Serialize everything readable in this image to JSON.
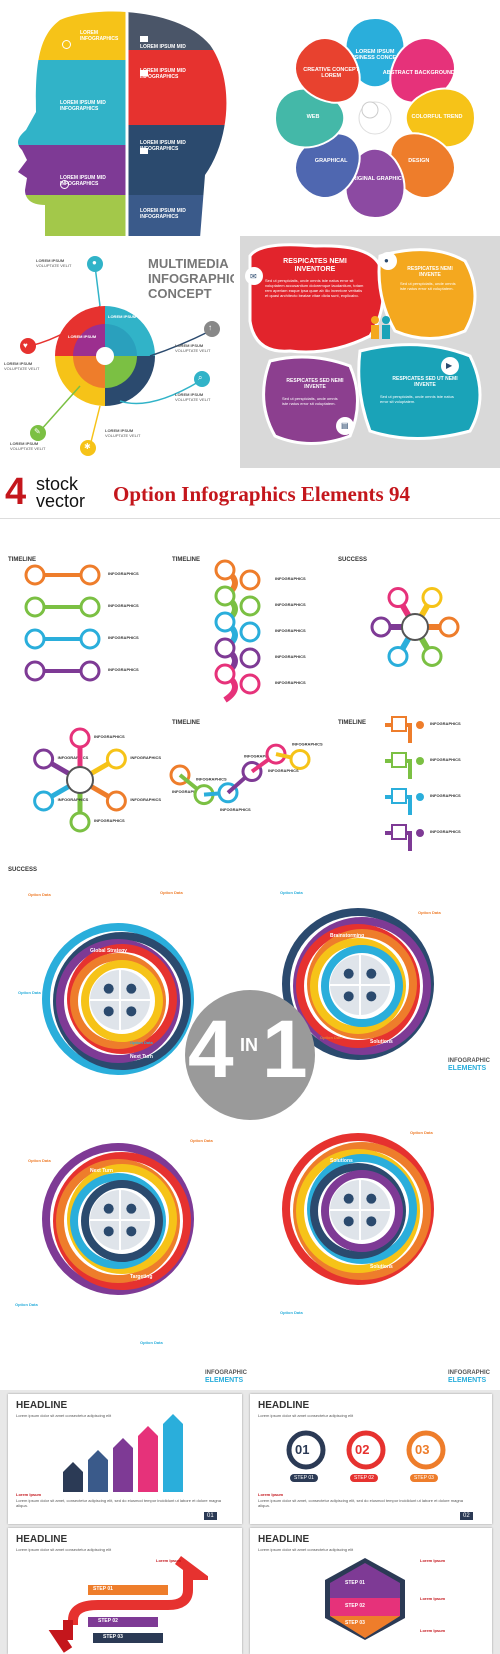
{
  "banner": {
    "logo_number": "4",
    "logo_word1": "stock",
    "logo_word2": "vector",
    "title": "Option Infographics Elements 94"
  },
  "head_panel": {
    "segments": [
      {
        "label": "LOREM INFOGRAPHICS",
        "color": "#f6c318"
      },
      {
        "label": "LOREM IPSUM MID",
        "color": "#4a5568"
      },
      {
        "label": "LOREM IPSUM MID INFOGRAPHICS",
        "color": "#e6322f"
      },
      {
        "label": "LOREM IPSUM MID INFOGRAPHICS",
        "color": "#31b3c8"
      },
      {
        "label": "LOREM IPSUM MID INFOGRAPHICS",
        "color": "#2b4a6e"
      },
      {
        "label": "LOREM IPSUM MID INFOGRAPHICS",
        "color": "#a3c84a"
      },
      {
        "label": "LOREM IPSUM MID INFOGRAPHICS",
        "color": "#7e3a95"
      },
      {
        "label": "LOREM IPSUM MID INFOGRAPHICS",
        "color": "#3a5a8a"
      }
    ]
  },
  "flower_panel": {
    "petals": [
      {
        "label": "LOREM IPSUM BUSINESS CONCEPT",
        "color": "#2aaedb"
      },
      {
        "label": "ABSTRACT BACKGROUND",
        "color": "#e6327a"
      },
      {
        "label": "COLORFUL TREND",
        "color": "#f6c318"
      },
      {
        "label": "DESIGN",
        "color": "#ee7d2b"
      },
      {
        "label": "ORIGINAL GRAPHIC",
        "color": "#8c4aa2"
      },
      {
        "label": "GRAPHICAL",
        "color": "#4f67b0"
      },
      {
        "label": "WEB",
        "color": "#44b8a8"
      },
      {
        "label": "CREATIVE CONCEPT LOREM",
        "color": "#e8422f"
      }
    ]
  },
  "multimedia_panel": {
    "title_line1": "MULTIMEDIA",
    "title_line2": "INFOGRAPHIC",
    "title_line3": "CONCEPT",
    "labels": [
      "LOREM IPSUM",
      "LOREM IPSUM",
      "LOREM IPSUM",
      "LOREM IPSUM",
      "LOREM IPSUM",
      "LOREM IPSUM",
      "LOREM IPSUM",
      "LOREM IPSUM"
    ],
    "sublabel": "VOLUPTATE VELIT"
  },
  "speech_panel": {
    "bubbles": [
      {
        "label": "RESPICATES NEMI INVENTORE",
        "color": "#e2242c"
      },
      {
        "label": "RESPICATES NEMI INVENTE",
        "color": "#f4a81f"
      },
      {
        "label": "RESPICATES SED NEMI INVENTE",
        "color": "#8c3f8f"
      },
      {
        "label": "RESPICATES SED UT NEMI INVENTE",
        "color": "#1aa3b8"
      }
    ]
  },
  "timelines": {
    "title_a": "TIMELINE",
    "title_b": "SUCCESS",
    "item_label": "INFOGRAPHICS"
  },
  "rings_panel": {
    "center_big": "4",
    "center_small": "IN",
    "center_one": "1",
    "option_label": "Option Data",
    "brand_line1": "INFOGRAPHIC",
    "brand_line2": "ELEMENTS",
    "ring_words": [
      "Global Strategy",
      "Brainstorming",
      "Next Turn",
      "Solutions",
      "Targeting",
      "Solutions"
    ]
  },
  "headline_cards": [
    {
      "headline": "HEADLINE",
      "sub": "Lorem ipsum dolor sit amet consectetur adipiscing elit",
      "page": "01",
      "lorem": "Lorem Ipsum"
    },
    {
      "headline": "HEADLINE",
      "sub": "Lorem ipsum dolor sit amet consectetur adipiscing elit",
      "page": "02",
      "lorem": "Lorem Ipsum",
      "steps": [
        "01",
        "02",
        "03"
      ],
      "step_labels": [
        "STEP 01",
        "STEP 02",
        "STEP 03"
      ]
    },
    {
      "headline": "HEADLINE",
      "sub": "Lorem ipsum dolor sit amet consectetur adipiscing elit",
      "lorem": "Lorem Ipsum",
      "step_labels": [
        "STEP 01",
        "STEP 02",
        "STEP 03"
      ]
    },
    {
      "headline": "HEADLINE",
      "sub": "Lorem ipsum dolor sit amet consectetur adipiscing elit",
      "lorem": "Lorem Ipsum",
      "step_labels": [
        "STEP 01",
        "STEP 02",
        "STEP 03"
      ]
    }
  ]
}
